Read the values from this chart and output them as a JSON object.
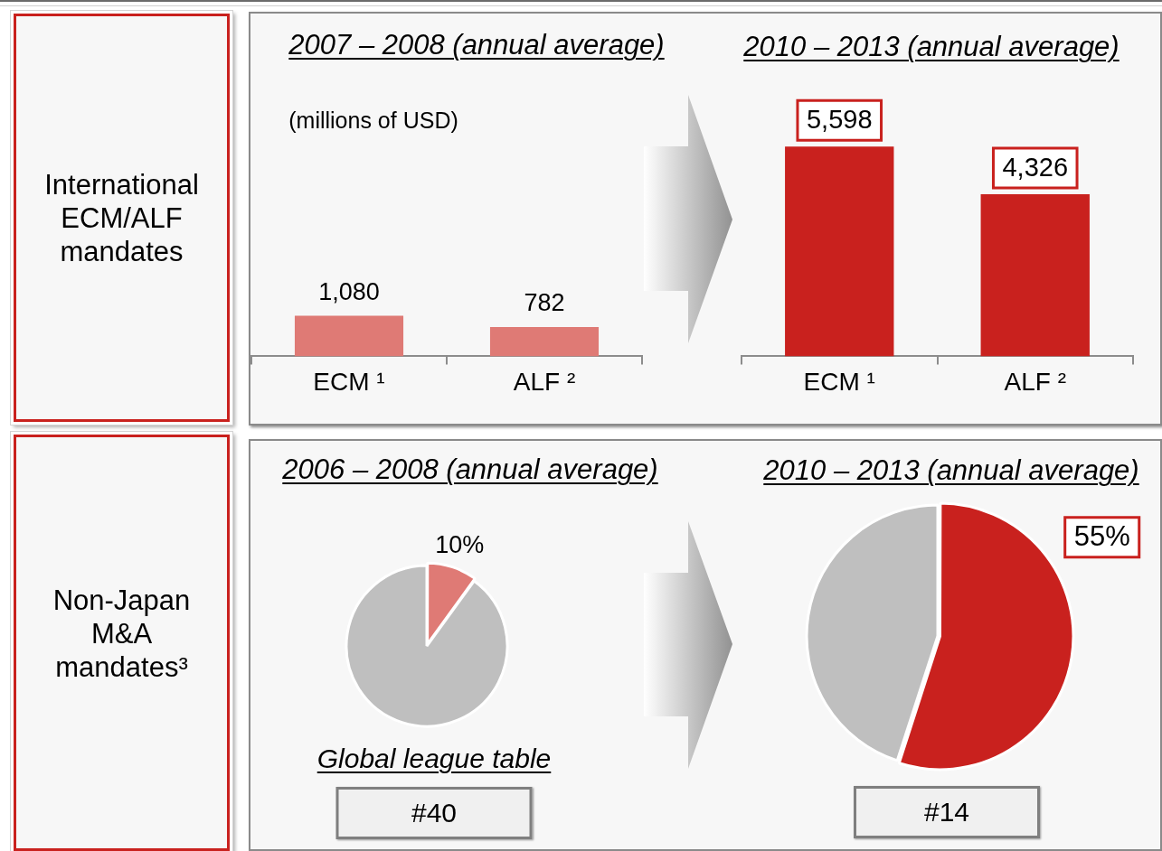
{
  "chart_data": [
    {
      "type": "other",
      "title": "International ECM/ALF mandates"
    },
    {
      "type": "bar",
      "title": "2007 – 2008 (annual average)",
      "categories": [
        "ECM ¹",
        "ALF ²"
      ],
      "values": [
        1080,
        782
      ],
      "color": "#df7a75",
      "value_labels": [
        "1,080",
        "782"
      ],
      "annotations": [
        "(millions of USD)"
      ]
    },
    {
      "type": "bar",
      "title": "2010 – 2013 (annual average)",
      "categories": [
        "ECM ¹",
        "ALF ²"
      ],
      "values": [
        5598,
        4326
      ],
      "color": "#c9211e",
      "value_labels": [
        "5,598",
        "4,326"
      ]
    },
    {
      "type": "other",
      "title": "Non-Japan M&A mandates³"
    },
    {
      "type": "pie",
      "title": "2006 – 2008 (annual average)",
      "categories": [
        null,
        null
      ],
      "values": [
        10,
        90
      ],
      "colors": [
        "#df7a75",
        "#bfbfbf"
      ],
      "value_labels": [
        "10%",
        null
      ],
      "annotations": [
        "Global league table",
        "#40"
      ]
    },
    {
      "type": "pie",
      "title": "2010 – 2013 (annual average)",
      "categories": [
        null,
        null
      ],
      "values": [
        55,
        45
      ],
      "colors": [
        "#c9211e",
        "#bfbfbf"
      ],
      "value_labels": [
        "55%",
        null
      ],
      "annotations": [
        "#14"
      ]
    }
  ]
}
